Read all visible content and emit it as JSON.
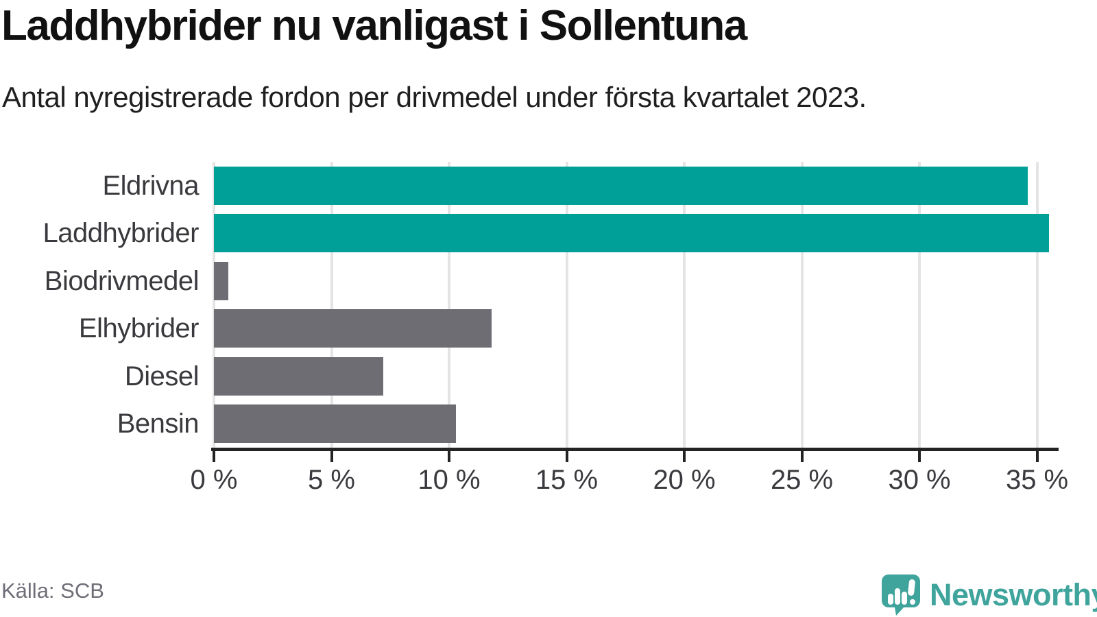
{
  "title": "Laddhybrider nu vanligast i Sollentuna",
  "subtitle": "Antal nyregistrerade fordon per drivmedel under första kvartalet 2023.",
  "source": "Källa: SCB",
  "brand": {
    "name": "Newsworthy",
    "logo_icon": "speech-bubble-bar-chart-exclamation-icon",
    "color": "#3fa49c"
  },
  "colors": {
    "accent_bar": "#00a099",
    "muted_bar": "#6d6d73",
    "gridline": "#e4e4e4",
    "axis": "#232323",
    "text": "#3a3a3e",
    "subtle_text": "#6e6e78"
  },
  "chart_data": {
    "type": "bar",
    "orientation": "horizontal",
    "title": "Laddhybrider nu vanligast i Sollentuna",
    "subtitle": "Antal nyregistrerade fordon per drivmedel under första kvartalet 2023.",
    "categories": [
      "Eldrivna",
      "Laddhybrider",
      "Biodrivmedel",
      "Elhybrider",
      "Diesel",
      "Bensin"
    ],
    "values": [
      34.6,
      35.5,
      0.6,
      11.8,
      7.2,
      10.3
    ],
    "unit": "%",
    "bar_colors": [
      "#00a099",
      "#00a099",
      "#6d6d73",
      "#6d6d73",
      "#6d6d73",
      "#6d6d73"
    ],
    "x_tick_labels": [
      "0 %",
      "5 %",
      "10 %",
      "15 %",
      "20 %",
      "25 %",
      "30 %",
      "35 %"
    ],
    "x_tick_values": [
      0,
      5,
      10,
      15,
      20,
      25,
      30,
      35
    ],
    "xlim": [
      0,
      35.8
    ],
    "grid": true,
    "legend": false
  }
}
